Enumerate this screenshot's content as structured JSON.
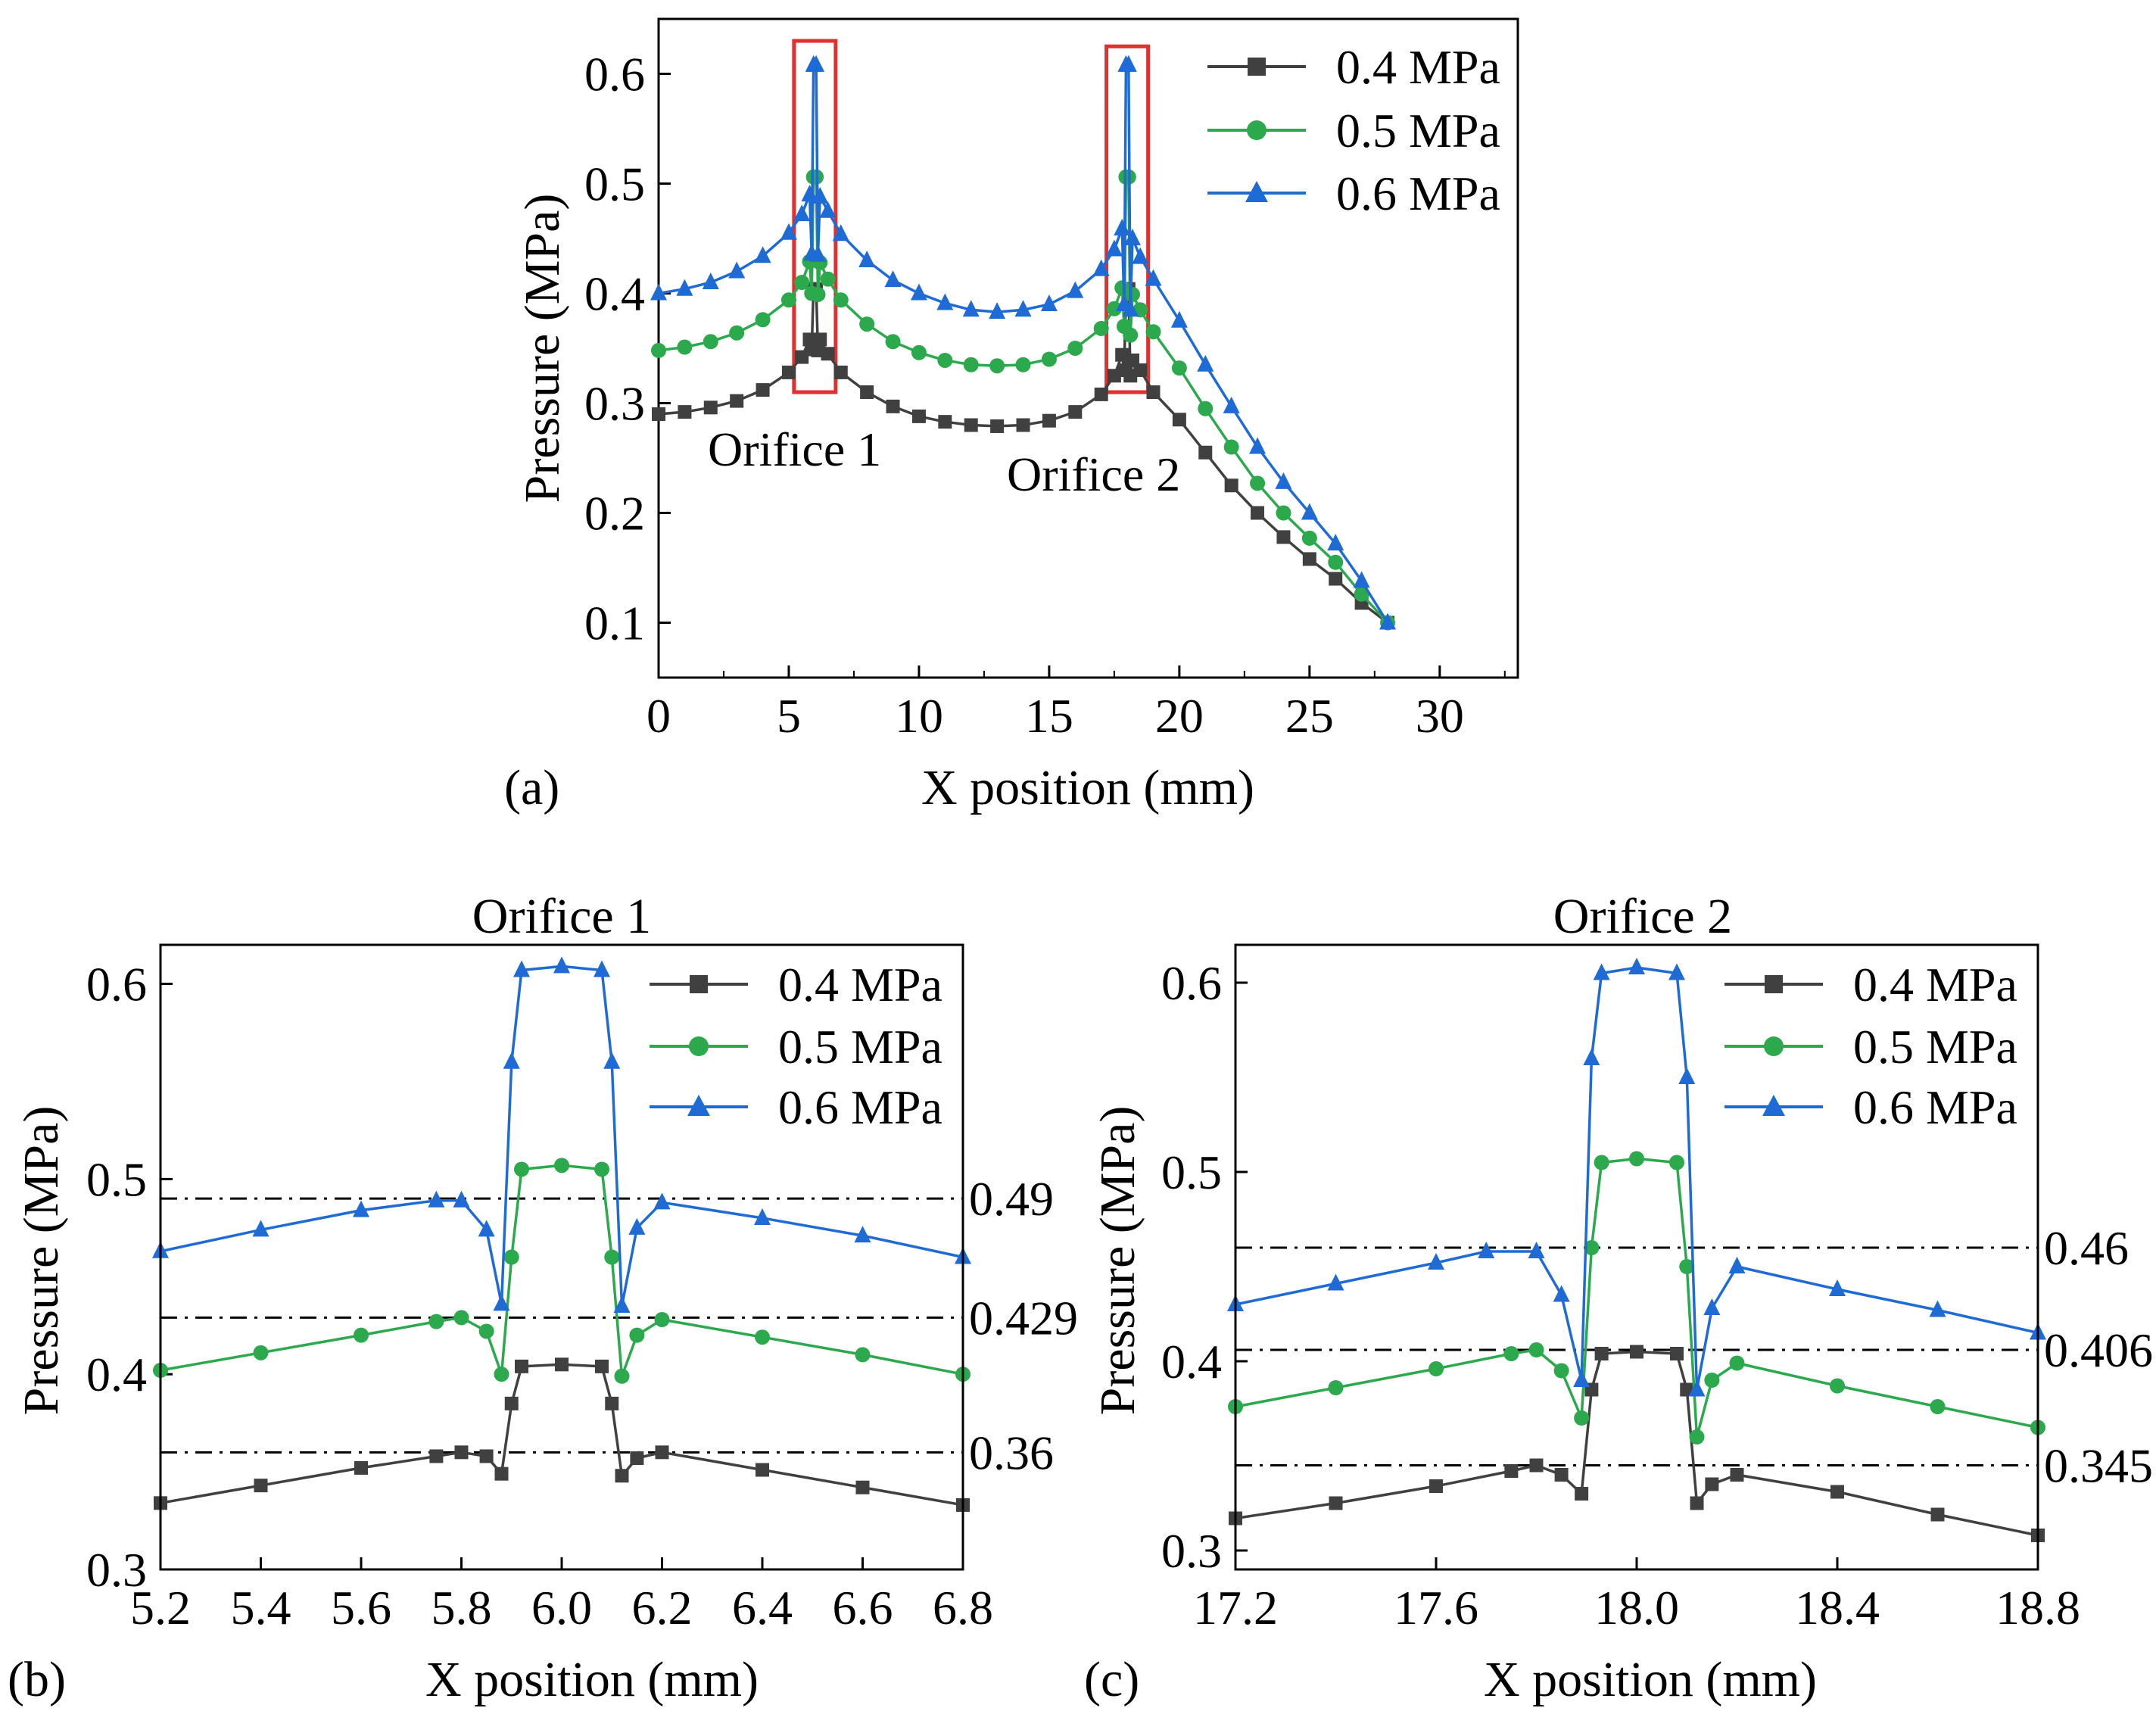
{
  "chart_data": [
    {
      "type": "line",
      "panel_label": "(a)",
      "title": "",
      "xlabel": "X position (mm)",
      "ylabel": "Pressure (MPa)",
      "xlim": [
        0,
        33
      ],
      "ylim": [
        0.05,
        0.65
      ],
      "xticks": [
        0,
        5,
        10,
        15,
        20,
        25,
        30
      ],
      "xtick_labels": [
        "0",
        "5",
        "10",
        "15",
        "20",
        "25",
        "30"
      ],
      "yticks": [
        0.1,
        0.2,
        0.3,
        0.4,
        0.5,
        0.6
      ],
      "ytick_labels": [
        "0.1",
        "0.2",
        "0.3",
        "0.4",
        "0.5",
        "0.6"
      ],
      "legend_position": "top-right",
      "annotations": [
        {
          "text": "Orifice 1",
          "x": 5.3,
          "y": 0.215
        },
        {
          "text": "Orifice 2",
          "x": 16.8,
          "y": 0.18
        }
      ],
      "highlight_boxes": [
        {
          "label": "orifice-1-box",
          "x_range": [
            5.2,
            6.8
          ],
          "y_range": [
            0.31,
            0.63
          ]
        },
        {
          "label": "orifice-2-box",
          "x_range": [
            17.2,
            18.8
          ],
          "y_range": [
            0.31,
            0.625
          ]
        }
      ],
      "series": [
        {
          "name": "0.4 MPa",
          "color": "#404040",
          "marker": "square",
          "x": [
            0,
            1,
            2,
            3,
            4,
            5,
            5.5,
            5.8,
            5.88,
            5.95,
            6.05,
            6.12,
            6.2,
            6.5,
            7,
            8,
            9,
            10,
            11,
            12,
            13,
            14,
            15,
            16,
            17,
            17.5,
            17.8,
            17.88,
            17.95,
            18.05,
            18.12,
            18.2,
            18.5,
            19,
            20,
            21,
            22,
            23,
            24,
            25,
            26,
            27,
            28
          ],
          "y": [
            0.29,
            0.292,
            0.296,
            0.302,
            0.312,
            0.328,
            0.342,
            0.358,
            0.349,
            0.404,
            0.404,
            0.348,
            0.358,
            0.345,
            0.328,
            0.31,
            0.297,
            0.288,
            0.283,
            0.28,
            0.279,
            0.28,
            0.284,
            0.292,
            0.308,
            0.325,
            0.344,
            0.33,
            0.404,
            0.404,
            0.325,
            0.339,
            0.33,
            0.31,
            0.285,
            0.255,
            0.225,
            0.2,
            0.178,
            0.158,
            0.14,
            0.118,
            0.1
          ]
        },
        {
          "name": "0.5 MPa",
          "color": "#2ca84d",
          "marker": "circle",
          "x": [
            0,
            1,
            2,
            3,
            4,
            5,
            5.5,
            5.8,
            5.88,
            5.95,
            6.05,
            6.12,
            6.2,
            6.5,
            7,
            8,
            9,
            10,
            11,
            12,
            13,
            14,
            15,
            16,
            17,
            17.5,
            17.8,
            17.88,
            17.95,
            18.05,
            18.12,
            18.2,
            18.5,
            19,
            20,
            21,
            22,
            23,
            24,
            25,
            26,
            27,
            28
          ],
          "y": [
            0.348,
            0.351,
            0.356,
            0.364,
            0.376,
            0.394,
            0.41,
            0.429,
            0.4,
            0.506,
            0.506,
            0.399,
            0.428,
            0.413,
            0.394,
            0.372,
            0.356,
            0.346,
            0.339,
            0.335,
            0.334,
            0.335,
            0.34,
            0.35,
            0.368,
            0.386,
            0.405,
            0.37,
            0.506,
            0.506,
            0.362,
            0.399,
            0.385,
            0.365,
            0.332,
            0.295,
            0.26,
            0.227,
            0.2,
            0.177,
            0.155,
            0.126,
            0.1
          ]
        },
        {
          "name": "0.6 MPa",
          "color": "#1f6bd6",
          "marker": "triangle",
          "x": [
            0,
            1,
            2,
            3,
            4,
            5,
            5.5,
            5.8,
            5.88,
            5.95,
            6.05,
            6.12,
            6.2,
            6.5,
            7,
            8,
            9,
            10,
            11,
            12,
            13,
            14,
            15,
            16,
            17,
            17.5,
            17.8,
            17.88,
            17.95,
            18.05,
            18.12,
            18.2,
            18.5,
            19,
            20,
            21,
            22,
            23,
            24,
            25,
            26,
            27,
            28
          ],
          "y": [
            0.4,
            0.404,
            0.41,
            0.42,
            0.434,
            0.455,
            0.472,
            0.49,
            0.436,
            0.608,
            0.608,
            0.435,
            0.488,
            0.475,
            0.454,
            0.43,
            0.412,
            0.4,
            0.391,
            0.385,
            0.383,
            0.385,
            0.39,
            0.402,
            0.422,
            0.44,
            0.459,
            0.39,
            0.608,
            0.608,
            0.385,
            0.45,
            0.433,
            0.413,
            0.375,
            0.335,
            0.297,
            0.26,
            0.228,
            0.2,
            0.172,
            0.138,
            0.1
          ]
        }
      ]
    },
    {
      "type": "line",
      "panel_label": "(b)",
      "title": "Orifice 1",
      "xlabel": "X position (mm)",
      "ylabel": "Pressure (MPa)",
      "xlim": [
        5.2,
        6.8
      ],
      "ylim": [
        0.3,
        0.62
      ],
      "xticks": [
        5.2,
        5.4,
        5.6,
        5.8,
        6.0,
        6.2,
        6.4,
        6.6,
        6.8
      ],
      "xtick_labels": [
        "5.2",
        "5.4",
        "5.6",
        "5.8",
        "6.0",
        "6.2",
        "6.4",
        "6.6",
        "6.8"
      ],
      "yticks": [
        0.3,
        0.4,
        0.5,
        0.6
      ],
      "ytick_labels": [
        "0.3",
        "0.4",
        "0.5",
        "0.6"
      ],
      "legend_position": "top-right",
      "reference_lines": [
        {
          "y": 0.49,
          "label": "0.49"
        },
        {
          "y": 0.429,
          "label": "0.429"
        },
        {
          "y": 0.36,
          "label": "0.36"
        }
      ],
      "series": [
        {
          "name": "0.4 MPa",
          "color": "#404040",
          "marker": "square",
          "x": [
            5.2,
            5.4,
            5.6,
            5.75,
            5.8,
            5.85,
            5.88,
            5.9,
            5.92,
            6.0,
            6.08,
            6.1,
            6.12,
            6.15,
            6.2,
            6.4,
            6.6,
            6.8
          ],
          "y": [
            0.334,
            0.343,
            0.352,
            0.358,
            0.36,
            0.358,
            0.349,
            0.385,
            0.404,
            0.405,
            0.404,
            0.385,
            0.348,
            0.357,
            0.36,
            0.351,
            0.342,
            0.333
          ]
        },
        {
          "name": "0.5 MPa",
          "color": "#2ca84d",
          "marker": "circle",
          "x": [
            5.2,
            5.4,
            5.6,
            5.75,
            5.8,
            5.85,
            5.88,
            5.9,
            5.92,
            6.0,
            6.08,
            6.1,
            6.12,
            6.15,
            6.2,
            6.4,
            6.6,
            6.8
          ],
          "y": [
            0.402,
            0.411,
            0.42,
            0.427,
            0.429,
            0.422,
            0.4,
            0.46,
            0.505,
            0.507,
            0.505,
            0.46,
            0.399,
            0.42,
            0.428,
            0.419,
            0.41,
            0.4
          ]
        },
        {
          "name": "0.6 MPa",
          "color": "#1f6bd6",
          "marker": "triangle",
          "x": [
            5.2,
            5.4,
            5.6,
            5.75,
            5.8,
            5.85,
            5.88,
            5.9,
            5.92,
            6.0,
            6.08,
            6.1,
            6.12,
            6.15,
            6.2,
            6.4,
            6.6,
            6.8
          ],
          "y": [
            0.463,
            0.474,
            0.484,
            0.489,
            0.489,
            0.474,
            0.436,
            0.56,
            0.607,
            0.609,
            0.607,
            0.56,
            0.435,
            0.475,
            0.488,
            0.48,
            0.471,
            0.46
          ]
        }
      ]
    },
    {
      "type": "line",
      "panel_label": "(c)",
      "title": "Orifice 2",
      "xlabel": "X position (mm)",
      "ylabel": "Pressure (MPa)",
      "xlim": [
        17.2,
        18.8
      ],
      "ylim": [
        0.29,
        0.62
      ],
      "xticks": [
        17.2,
        17.6,
        18.0,
        18.4,
        18.8
      ],
      "xtick_labels": [
        "17.2",
        "17.6",
        "18.0",
        "18.4",
        "18.8"
      ],
      "yticks": [
        0.3,
        0.4,
        0.5,
        0.6
      ],
      "ytick_labels": [
        "0.3",
        "0.4",
        "0.5",
        "0.6"
      ],
      "legend_position": "top-right",
      "reference_lines": [
        {
          "y": 0.46,
          "label": "0.46"
        },
        {
          "y": 0.406,
          "label": "0.406"
        },
        {
          "y": 0.345,
          "label": "0.345"
        }
      ],
      "series": [
        {
          "name": "0.4 MPa",
          "color": "#404040",
          "marker": "square",
          "x": [
            17.2,
            17.4,
            17.6,
            17.75,
            17.8,
            17.85,
            17.89,
            17.91,
            17.93,
            18.0,
            18.08,
            18.1,
            18.12,
            18.15,
            18.2,
            18.4,
            18.6,
            18.8
          ],
          "y": [
            0.317,
            0.325,
            0.334,
            0.342,
            0.345,
            0.34,
            0.33,
            0.385,
            0.404,
            0.405,
            0.404,
            0.385,
            0.325,
            0.335,
            0.34,
            0.331,
            0.319,
            0.308
          ]
        },
        {
          "name": "0.5 MPa",
          "color": "#2ca84d",
          "marker": "circle",
          "x": [
            17.2,
            17.4,
            17.6,
            17.75,
            17.8,
            17.85,
            17.89,
            17.91,
            17.93,
            18.0,
            18.08,
            18.1,
            18.12,
            18.15,
            18.2,
            18.4,
            18.6,
            18.8
          ],
          "y": [
            0.376,
            0.386,
            0.396,
            0.404,
            0.406,
            0.395,
            0.37,
            0.46,
            0.505,
            0.507,
            0.505,
            0.45,
            0.36,
            0.39,
            0.399,
            0.387,
            0.376,
            0.365
          ]
        },
        {
          "name": "0.6 MPa",
          "color": "#1f6bd6",
          "marker": "triangle",
          "x": [
            17.2,
            17.4,
            17.6,
            17.7,
            17.8,
            17.85,
            17.89,
            17.91,
            17.93,
            18.0,
            18.08,
            18.1,
            18.12,
            18.15,
            18.2,
            18.4,
            18.6,
            18.8
          ],
          "y": [
            0.43,
            0.441,
            0.452,
            0.458,
            0.458,
            0.435,
            0.39,
            0.56,
            0.605,
            0.608,
            0.605,
            0.55,
            0.385,
            0.428,
            0.45,
            0.438,
            0.427,
            0.415
          ]
        }
      ]
    }
  ]
}
